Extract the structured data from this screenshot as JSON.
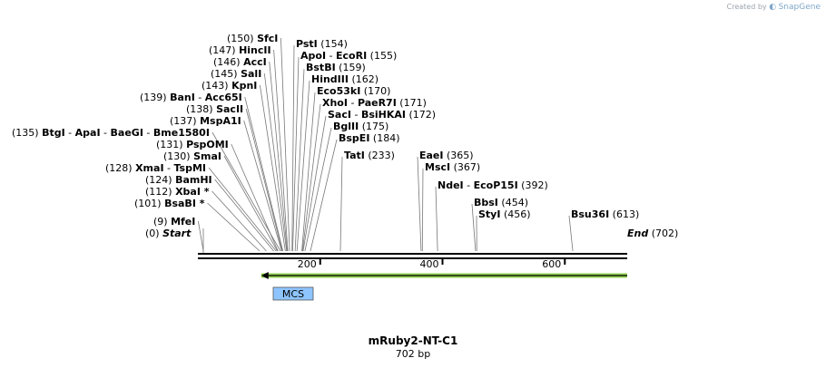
{
  "watermark": {
    "prefix": "Created by",
    "brand": "SnapGene"
  },
  "map": {
    "name": "mRuby2-NT-C1",
    "length_label": "702 bp",
    "length": 702,
    "axis_ticks": [
      200,
      400,
      600
    ],
    "start_label": "Start",
    "start_pos": "(0)",
    "end_label": "End",
    "end_pos": "(702)",
    "feature": {
      "name": "MCS",
      "start": 101,
      "end": 184,
      "color": "#8ec5ff"
    },
    "arrow": {
      "start": 108,
      "end": 702,
      "direction": "reverse",
      "color": "#8fd14f"
    }
  },
  "sites": [
    {
      "pos": 150,
      "pos_label": "(150)",
      "names": [
        "SfcI"
      ],
      "side": "left"
    },
    {
      "pos": 147,
      "pos_label": "(147)",
      "names": [
        "HincII"
      ],
      "side": "left"
    },
    {
      "pos": 146,
      "pos_label": "(146)",
      "names": [
        "AccI"
      ],
      "side": "left"
    },
    {
      "pos": 145,
      "pos_label": "(145)",
      "names": [
        "SalI"
      ],
      "side": "left"
    },
    {
      "pos": 143,
      "pos_label": "(143)",
      "names": [
        "KpnI"
      ],
      "side": "left"
    },
    {
      "pos": 139,
      "pos_label": "(139)",
      "names": [
        "BanI",
        "Acc65I"
      ],
      "side": "left"
    },
    {
      "pos": 138,
      "pos_label": "(138)",
      "names": [
        "SacII"
      ],
      "side": "left"
    },
    {
      "pos": 137,
      "pos_label": "(137)",
      "names": [
        "MspA1I"
      ],
      "side": "left"
    },
    {
      "pos": 135,
      "pos_label": "(135)",
      "names": [
        "BtgI",
        "ApaI",
        "BaeGI",
        "Bme1580I"
      ],
      "side": "left"
    },
    {
      "pos": 131,
      "pos_label": "(131)",
      "names": [
        "PspOMI"
      ],
      "side": "left"
    },
    {
      "pos": 130,
      "pos_label": "(130)",
      "names": [
        "SmaI"
      ],
      "side": "left"
    },
    {
      "pos": 128,
      "pos_label": "(128)",
      "names": [
        "XmaI",
        "TspMI"
      ],
      "side": "left"
    },
    {
      "pos": 124,
      "pos_label": "(124)",
      "names": [
        "BamHI"
      ],
      "side": "left"
    },
    {
      "pos": 112,
      "pos_label": "(112)",
      "names": [
        "XbaI *"
      ],
      "side": "left"
    },
    {
      "pos": 101,
      "pos_label": "(101)",
      "names": [
        "BsaBI *"
      ],
      "side": "left"
    },
    {
      "pos": 9,
      "pos_label": "(9)",
      "names": [
        "MfeI"
      ],
      "side": "left"
    },
    {
      "pos": 154,
      "pos_label": "(154)",
      "names": [
        "PstI"
      ],
      "side": "right"
    },
    {
      "pos": 155,
      "pos_label": "(155)",
      "names": [
        "ApoI",
        "EcoRI"
      ],
      "side": "right"
    },
    {
      "pos": 159,
      "pos_label": "(159)",
      "names": [
        "BstBI"
      ],
      "side": "right"
    },
    {
      "pos": 162,
      "pos_label": "(162)",
      "names": [
        "HindIII"
      ],
      "side": "right"
    },
    {
      "pos": 170,
      "pos_label": "(170)",
      "names": [
        "Eco53kI"
      ],
      "side": "right"
    },
    {
      "pos": 171,
      "pos_label": "(171)",
      "names": [
        "XhoI",
        "PaeR7I"
      ],
      "side": "right"
    },
    {
      "pos": 172,
      "pos_label": "(172)",
      "names": [
        "SacI",
        "BsiHKAI"
      ],
      "side": "right"
    },
    {
      "pos": 175,
      "pos_label": "(175)",
      "names": [
        "BglII"
      ],
      "side": "right"
    },
    {
      "pos": 184,
      "pos_label": "(184)",
      "names": [
        "BspEI"
      ],
      "side": "right"
    },
    {
      "pos": 233,
      "pos_label": "(233)",
      "names": [
        "TatI"
      ],
      "side": "right"
    },
    {
      "pos": 365,
      "pos_label": "(365)",
      "names": [
        "EaeI"
      ],
      "side": "right"
    },
    {
      "pos": 367,
      "pos_label": "(367)",
      "names": [
        "MscI"
      ],
      "side": "right"
    },
    {
      "pos": 392,
      "pos_label": "(392)",
      "names": [
        "NdeI",
        "EcoP15I"
      ],
      "side": "right"
    },
    {
      "pos": 454,
      "pos_label": "(454)",
      "names": [
        "BbsI"
      ],
      "side": "right"
    },
    {
      "pos": 456,
      "pos_label": "(456)",
      "names": [
        "StyI"
      ],
      "side": "right"
    },
    {
      "pos": 613,
      "pos_label": "(613)",
      "names": [
        "Bsu36I"
      ],
      "side": "right"
    }
  ]
}
